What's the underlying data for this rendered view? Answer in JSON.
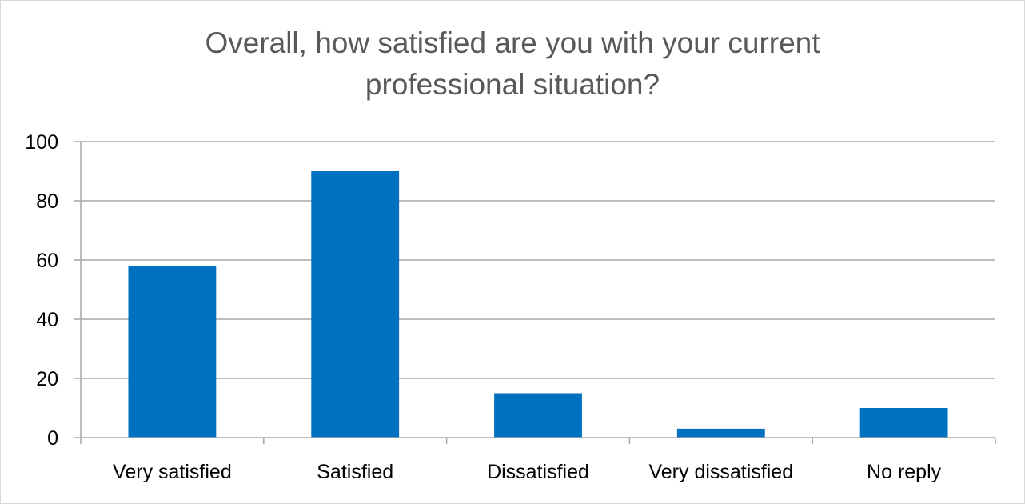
{
  "chart_data": {
    "type": "bar",
    "title_lines": [
      "Overall, how satisfied are you with your current",
      "professional situation?"
    ],
    "categories": [
      "Very satisfied",
      "Satisfied",
      "Dissatisfied",
      "Very dissatisfied",
      "No reply"
    ],
    "values": [
      58,
      90,
      15,
      3,
      10
    ],
    "ylim": [
      0,
      100
    ],
    "yticks": [
      "0",
      "20",
      "40",
      "60",
      "80",
      "100"
    ],
    "xlabel": "",
    "ylabel": "",
    "grid": true,
    "legend": "none",
    "bar_color": "#0070C0",
    "grid_color": "#a6a6a6"
  }
}
